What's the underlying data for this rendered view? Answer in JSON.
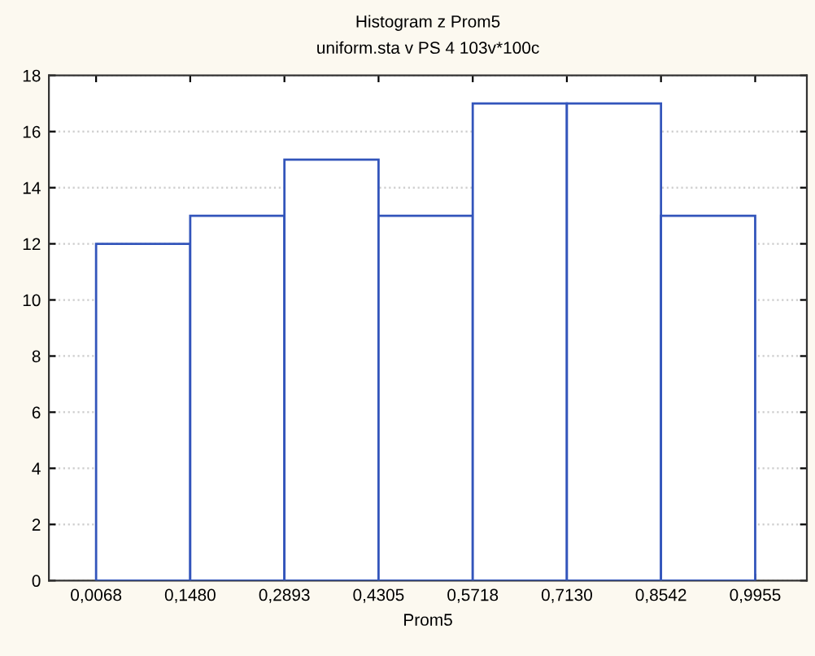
{
  "chart_data": {
    "type": "histogram",
    "title": "Histogram z Prom5",
    "subtitle": "uniform.sta v PS 4 103v*100c",
    "xlabel": "Prom5",
    "bins": [
      0.0068,
      0.148,
      0.2893,
      0.4305,
      0.5718,
      0.713,
      0.8542,
      0.9955
    ],
    "values": [
      12,
      13,
      15,
      13,
      17,
      17,
      13
    ],
    "color": "#3355bb",
    "xlim": [
      -0.064,
      1.073
    ],
    "xticks": [
      {
        "value": 0.0068,
        "label": "0,0068"
      },
      {
        "value": 0.148,
        "label": "0,1480"
      },
      {
        "value": 0.2893,
        "label": "0,2893"
      },
      {
        "value": 0.4305,
        "label": "0,4305"
      },
      {
        "value": 0.5718,
        "label": "0,5718"
      },
      {
        "value": 0.713,
        "label": "0,7130"
      },
      {
        "value": 0.8542,
        "label": "0,8542"
      },
      {
        "value": 0.9955,
        "label": "0,9955"
      }
    ],
    "ylim": [
      0,
      18
    ],
    "yticks": [
      0,
      2,
      4,
      6,
      8,
      10,
      12,
      14,
      16,
      18
    ],
    "grid": "y"
  }
}
